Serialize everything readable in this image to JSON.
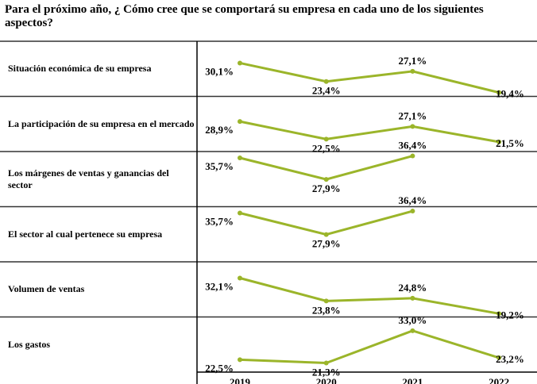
{
  "chart_data": {
    "type": "line",
    "title": "Para el próximo año, ¿ Cómo cree que se comportará su empresa en cada uno de los siguientes aspectos?",
    "categories": [
      "2019",
      "2020",
      "2021",
      "2022"
    ],
    "color": "#9bb52a",
    "ylim": [
      18,
      38
    ],
    "series": [
      {
        "name": "Situación económica de su empresa",
        "values": [
          30.1,
          23.4,
          27.1,
          19.4
        ],
        "value_labels": [
          "30,1%",
          "23,4%",
          "27,1%",
          "19,4%"
        ]
      },
      {
        "name": "La participación de su empresa en el mercado",
        "values": [
          28.9,
          22.5,
          27.1,
          21.5
        ],
        "value_labels": [
          "28,9%",
          "22,5%",
          "27,1%",
          "21,5%"
        ]
      },
      {
        "name": "Los márgenes de ventas y ganancias del sector",
        "values": [
          35.7,
          27.9,
          36.4,
          null
        ],
        "value_labels": [
          "35,7%",
          "27,9%",
          "36,4%",
          null
        ]
      },
      {
        "name": "El sector al cual pertenece su empresa",
        "values": [
          35.7,
          27.9,
          36.4,
          null
        ],
        "value_labels": [
          "35,7%",
          "27,9%",
          "36,4%",
          null
        ]
      },
      {
        "name": "Volumen de ventas",
        "values": [
          32.1,
          23.8,
          24.8,
          19.2
        ],
        "value_labels": [
          "32,1%",
          "23,8%",
          "24,8%",
          "19,2%"
        ]
      },
      {
        "name": "Los gastos",
        "values": [
          22.5,
          21.3,
          33.0,
          23.2
        ],
        "value_labels": [
          "22,5%",
          "21,3%",
          "33,0%",
          "23,2%"
        ]
      }
    ]
  }
}
